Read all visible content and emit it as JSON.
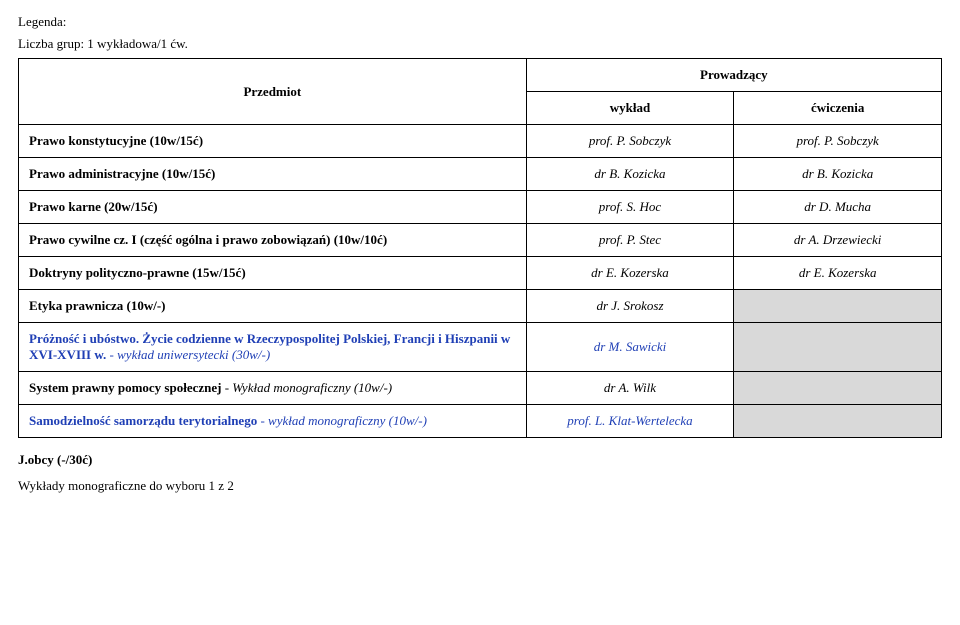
{
  "legend_label": "Legenda:",
  "groups_label": "Liczba grup: 1 wykładowa/1 ćw.",
  "header": {
    "subject": "Przedmiot",
    "instructors": "Prowadzący",
    "lecture": "wykład",
    "exercises": "ćwiczenia"
  },
  "rows": [
    {
      "subject": "Prawo konstytucyjne (10w/15ć)",
      "lect": "prof. P. Sobczyk",
      "ex": "prof. P. Sobczyk",
      "blue": false
    },
    {
      "subject": "Prawo administracyjne (10w/15ć)",
      "lect": "dr B. Kozicka",
      "ex": "dr B. Kozicka",
      "blue": false
    },
    {
      "subject": "Prawo karne (20w/15ć)",
      "lect": "prof. S. Hoc",
      "ex": "dr D. Mucha",
      "blue": false
    },
    {
      "subject": "Prawo cywilne cz. I (część ogólna i prawo zobowiązań) (10w/10ć)",
      "lect": "prof. P. Stec",
      "ex": "dr A. Drzewiecki",
      "blue": false
    },
    {
      "subject": "Doktryny polityczno-prawne (15w/15ć)",
      "lect": "dr E. Kozerska",
      "ex": "dr E. Kozerska",
      "blue": false
    },
    {
      "subject": "Etyka prawnicza (10w/-)",
      "lect": "dr J. Srokosz",
      "ex": "",
      "blue": false
    },
    {
      "subject": "Próżność i ubóstwo. Życie codzienne w Rzeczypospolitej Polskiej, Francji i Hiszpanii w XVI-XVIII w. - wykład uniwersytecki (30w/-)",
      "lect": "dr M. Sawicki",
      "ex": "",
      "blue": true,
      "subject_mixed": {
        "bold_part": "Próżność i ubóstwo. Życie codzienne w Rzeczypospolitej Polskiej, Francji i Hiszpanii w XVI-XVIII w.",
        "italic_part": " - wykład uniwersytecki (30w/-)"
      }
    },
    {
      "subject": "System prawny pomocy społecznej - Wykład monograficzny (10w/-)",
      "lect": "dr A. Wilk",
      "ex": "",
      "blue": false,
      "subject_mixed": {
        "bold_part": "System prawny pomocy społecznej",
        "italic_part": " - Wykład monograficzny (10w/-)"
      }
    },
    {
      "subject": "Samodzielność samorządu terytorialnego - wykład monograficzny (10w/-)",
      "lect": "prof. L. Klat-Wertelecka",
      "ex": "",
      "blue": true,
      "subject_mixed": {
        "bold_part": "Samodzielność samorządu terytorialnego",
        "italic_part": " - wykład monograficzny (10w/-)"
      }
    }
  ],
  "footer_bold": "J.obcy (-/30ć)",
  "footer_note": "Wykłady monograficzne do wyboru 1 z  2",
  "colors": {
    "blank_bg": "#d9d9d9",
    "blue_text": "#1f3fb5"
  }
}
